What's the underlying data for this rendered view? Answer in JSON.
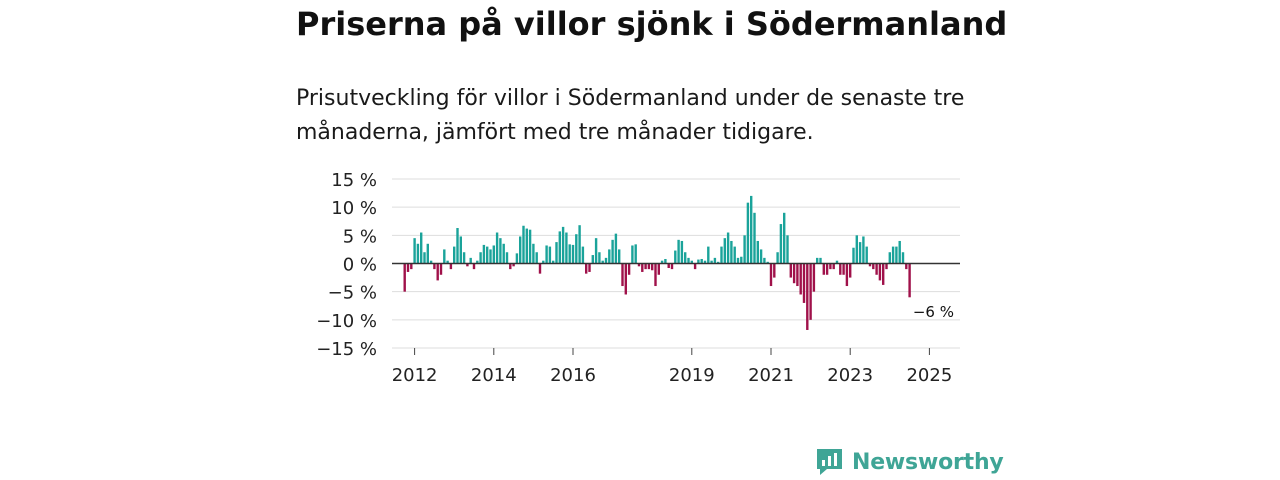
{
  "title": "Priserna på villor sjönk i Södermanland",
  "subtitle": "Prisutveckling för villor i Södermanland under de senaste tre månaderna, jämfört med tre månader tidigare.",
  "brand": {
    "name": "Newsworthy"
  },
  "colors": {
    "positive": "#1aa39a",
    "negative": "#a0114a",
    "grid": "#dddddd",
    "zero_line": "#333333",
    "brand": "#3fa596"
  },
  "chart_data": {
    "type": "bar",
    "title": "Priserna på villor sjönk i Södermanland",
    "ylabel": "",
    "xlabel": "",
    "ylim": [
      -15,
      15
    ],
    "y_ticks": [
      15,
      10,
      5,
      0,
      -5,
      -10,
      -15
    ],
    "y_tick_labels": [
      "15 %",
      "10 %",
      "5 %",
      "0 %",
      "−5 %",
      "−10 %",
      "−15 %"
    ],
    "x_ticks": [
      {
        "label": "2012",
        "index": 3
      },
      {
        "label": "2014",
        "index": 27
      },
      {
        "label": "2016",
        "index": 51
      },
      {
        "label": "2019",
        "index": 87
      },
      {
        "label": "2021",
        "index": 111
      },
      {
        "label": "2023",
        "index": 135
      },
      {
        "label": "2025",
        "index": 159
      }
    ],
    "last_label": "−6 %",
    "values": [
      -5.0,
      -1.5,
      -1.0,
      4.5,
      3.5,
      5.5,
      2.0,
      3.5,
      0.5,
      -1.0,
      -3.0,
      -2.0,
      2.5,
      0.5,
      -1.0,
      3.0,
      6.3,
      4.8,
      2.0,
      -0.5,
      1.0,
      -1.0,
      0.5,
      2.0,
      3.3,
      3.0,
      2.5,
      3.2,
      5.5,
      4.5,
      3.5,
      2.0,
      -1.0,
      -0.5,
      1.8,
      4.8,
      6.7,
      6.2,
      6.0,
      3.5,
      2.0,
      -1.8,
      0.5,
      3.2,
      3.0,
      0.5,
      3.8,
      5.7,
      6.5,
      5.5,
      3.4,
      3.3,
      5.2,
      6.8,
      3.0,
      -1.8,
      -1.5,
      1.5,
      4.5,
      2.0,
      0.5,
      1.0,
      2.5,
      4.2,
      5.3,
      2.5,
      -4.0,
      -5.5,
      -2.0,
      3.2,
      3.4,
      -0.5,
      -1.5,
      -1.0,
      -1.0,
      -1.2,
      -4.0,
      -2.0,
      0.5,
      0.8,
      -0.8,
      -1.0,
      2.3,
      4.2,
      4.0,
      2.0,
      1.0,
      0.5,
      -1.0,
      0.7,
      0.8,
      0.5,
      3.0,
      0.5,
      1.0,
      0.3,
      3.0,
      4.5,
      5.5,
      4.0,
      3.0,
      1.0,
      1.2,
      5.0,
      10.8,
      12.0,
      9.0,
      4.0,
      2.5,
      1.0,
      0.3,
      -4.0,
      -2.5,
      2.0,
      7.0,
      9.0,
      5.0,
      -2.5,
      -3.5,
      -4.0,
      -5.5,
      -7.0,
      -11.8,
      -10.0,
      -5.0,
      1.0,
      1.0,
      -2.0,
      -2.0,
      -1.0,
      -1.0,
      0.5,
      -2.0,
      -2.0,
      -4.0,
      -2.5,
      2.8,
      5.0,
      3.8,
      4.8,
      3.0,
      -0.5,
      -1.0,
      -2.0,
      -3.0,
      -3.8,
      -1.0,
      2.0,
      3.0,
      3.0,
      4.0,
      2.0,
      -1.0,
      -6.0
    ]
  }
}
